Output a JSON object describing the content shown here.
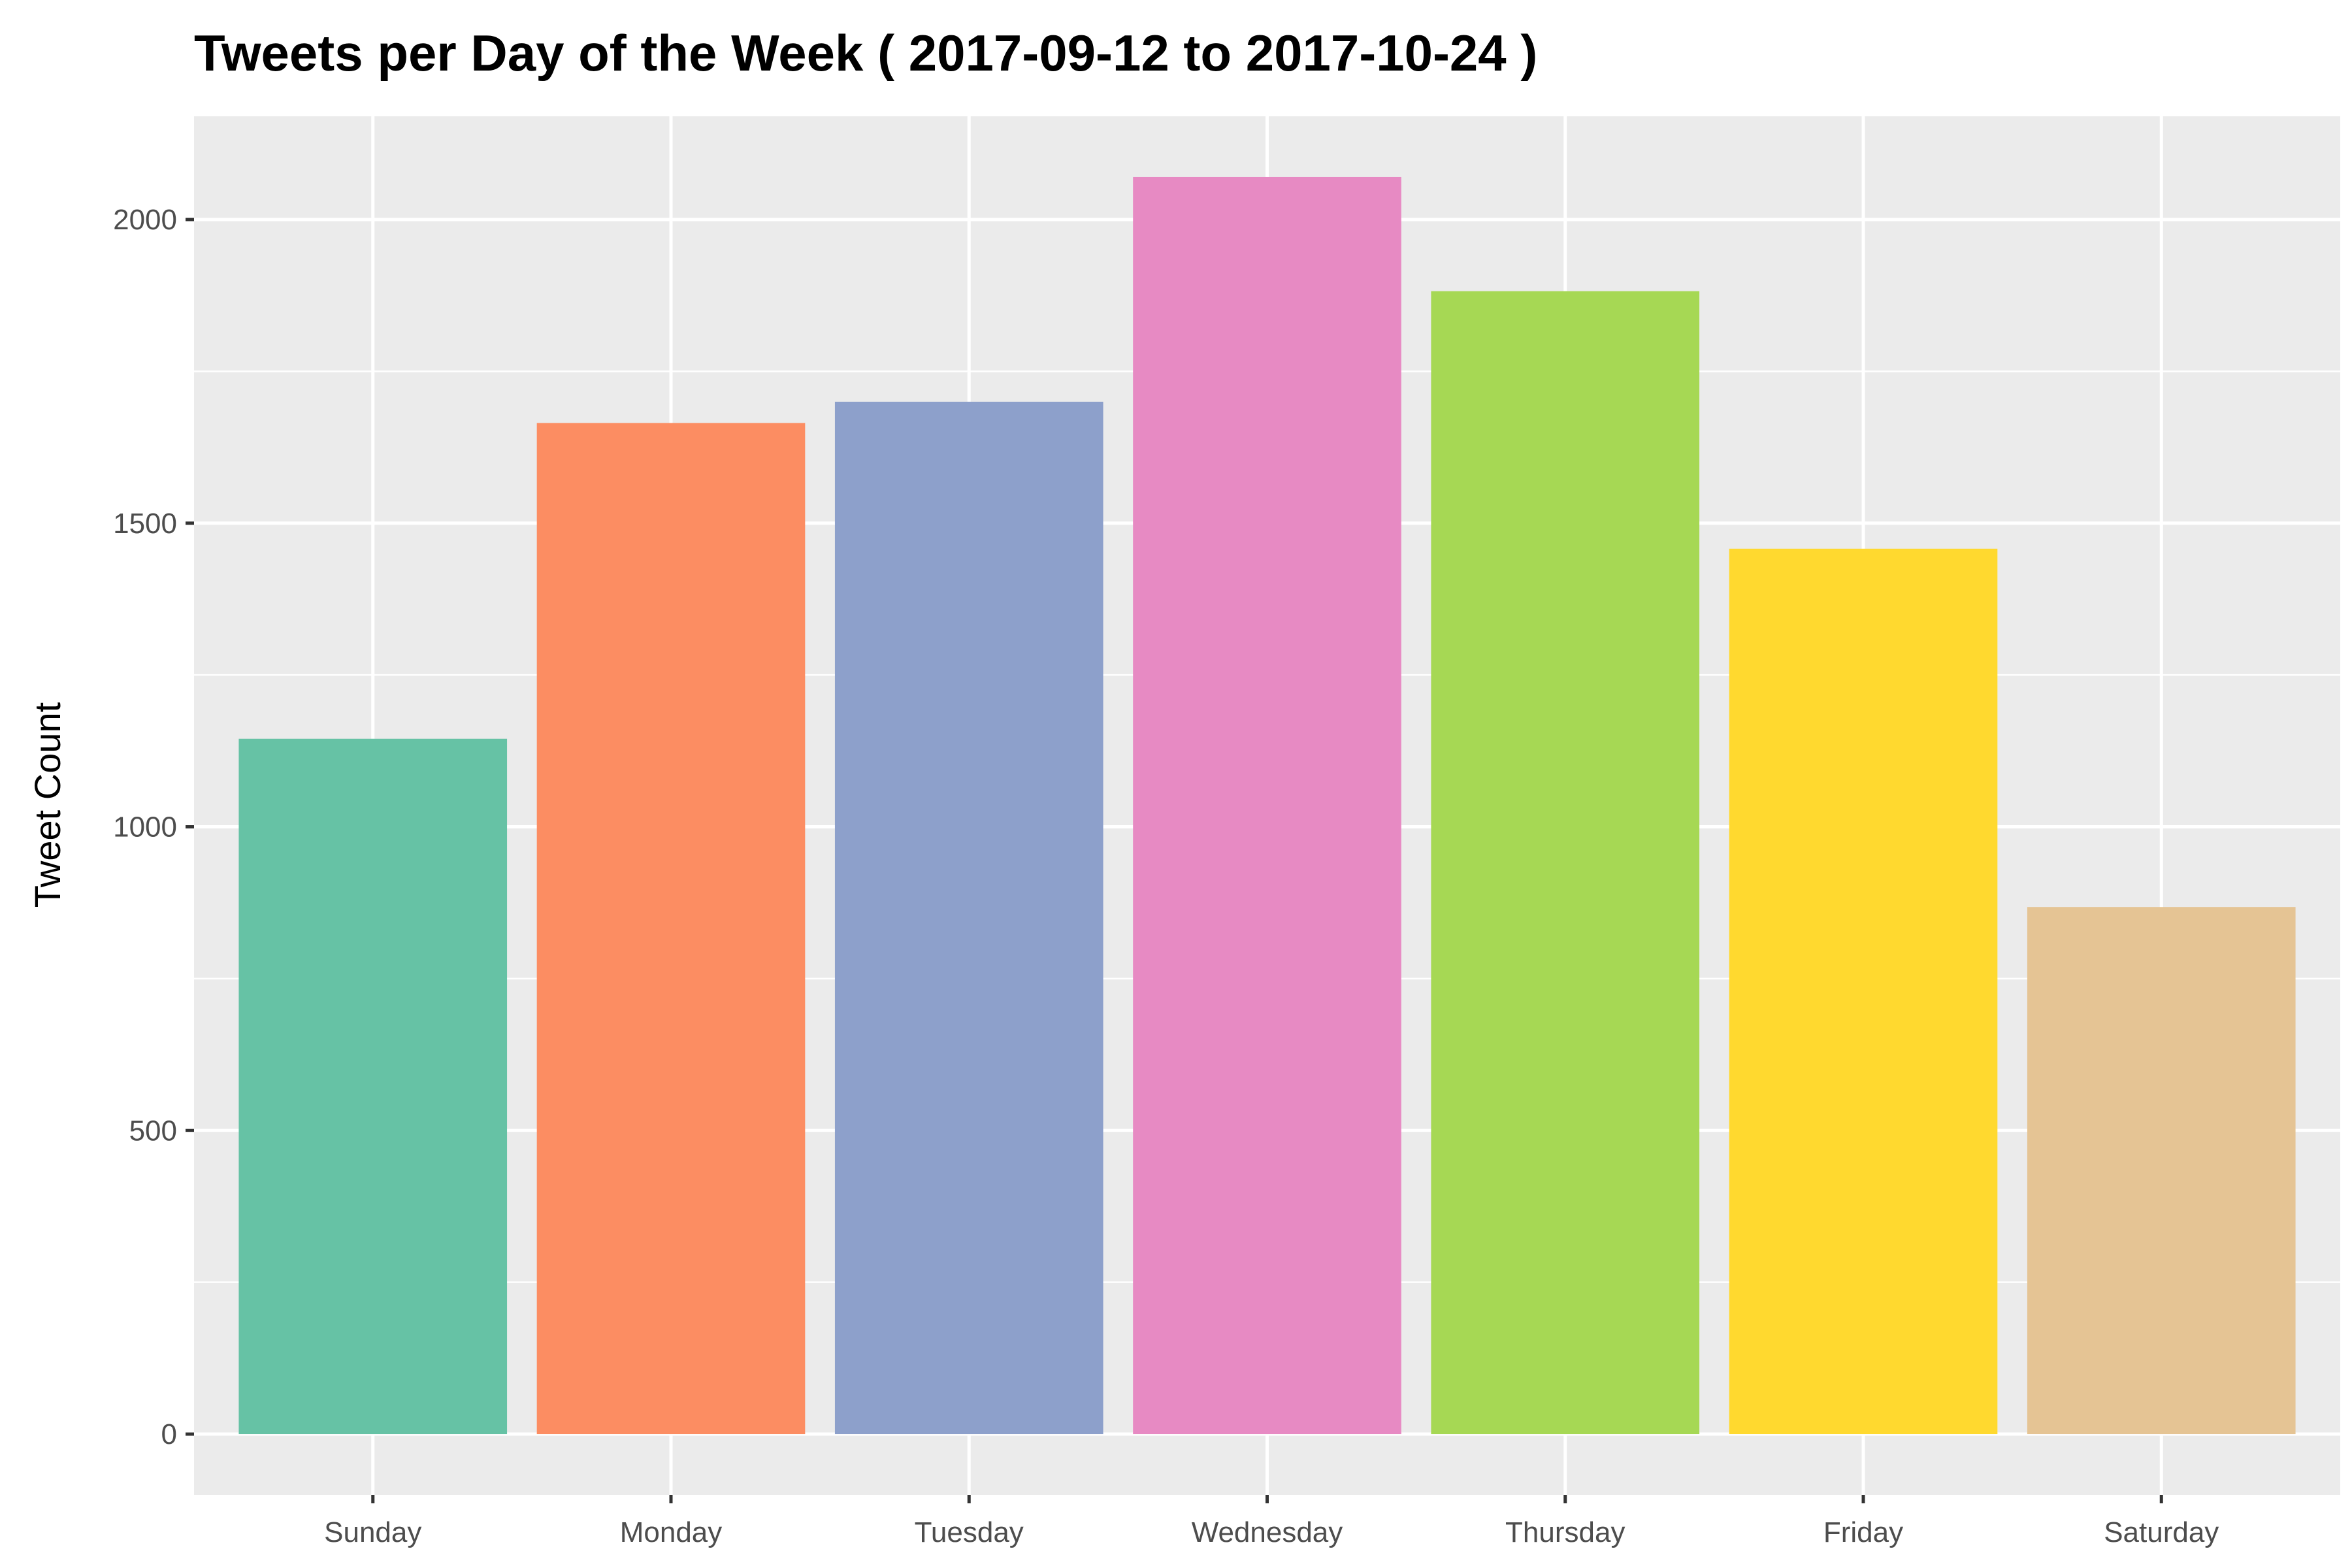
{
  "chart_data": {
    "type": "bar",
    "title": "Tweets per Day of the Week ( 2017-09-12 to 2017-10-24 )",
    "xlabel": "",
    "ylabel": "Tweet Count",
    "categories": [
      "Sunday",
      "Monday",
      "Tuesday",
      "Wednesday",
      "Thursday",
      "Friday",
      "Saturday"
    ],
    "values": [
      1145,
      1665,
      1700,
      2070,
      1882,
      1458,
      868
    ],
    "colors": [
      "#66C2A5",
      "#FC8D62",
      "#8DA0CB",
      "#E78AC3",
      "#A6D854",
      "#FFD92F",
      "#E5C494"
    ],
    "ylim": [
      -100,
      2170
    ],
    "yticks": [
      0,
      500,
      1000,
      1500,
      2000
    ],
    "grid": true,
    "legend": "none",
    "panel_color": "#EBEBEB"
  }
}
